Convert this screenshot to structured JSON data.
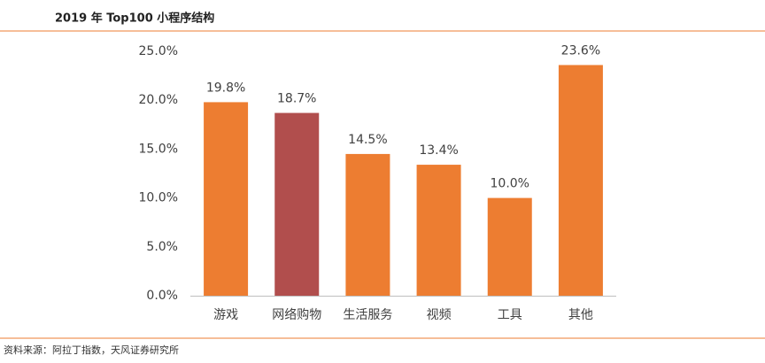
{
  "chart_data": {
    "type": "bar",
    "title": "2019 年 Top100 小程序结构",
    "source": "资料来源：阿拉丁指数，天风证券研究所",
    "categories": [
      "游戏",
      "网络购物",
      "生活服务",
      "视频",
      "工具",
      "其他"
    ],
    "values": [
      19.8,
      18.7,
      14.5,
      13.4,
      10.0,
      23.6
    ],
    "value_labels": [
      "19.8%",
      "18.7%",
      "14.5%",
      "13.4%",
      "10.0%",
      "23.6%"
    ],
    "colors": [
      "#ed7d31",
      "#b14e4d",
      "#ed7d31",
      "#ed7d31",
      "#ed7d31",
      "#ed7d31"
    ],
    "ylim": [
      0,
      25
    ],
    "yticks": [
      {
        "value": 0,
        "label": "0.0%"
      },
      {
        "value": 5,
        "label": "5.0%"
      },
      {
        "value": 10,
        "label": "10.0%"
      },
      {
        "value": 15,
        "label": "15.0%"
      },
      {
        "value": 20,
        "label": "20.0%"
      },
      {
        "value": 25,
        "label": "25.0%"
      }
    ],
    "grid": false
  }
}
